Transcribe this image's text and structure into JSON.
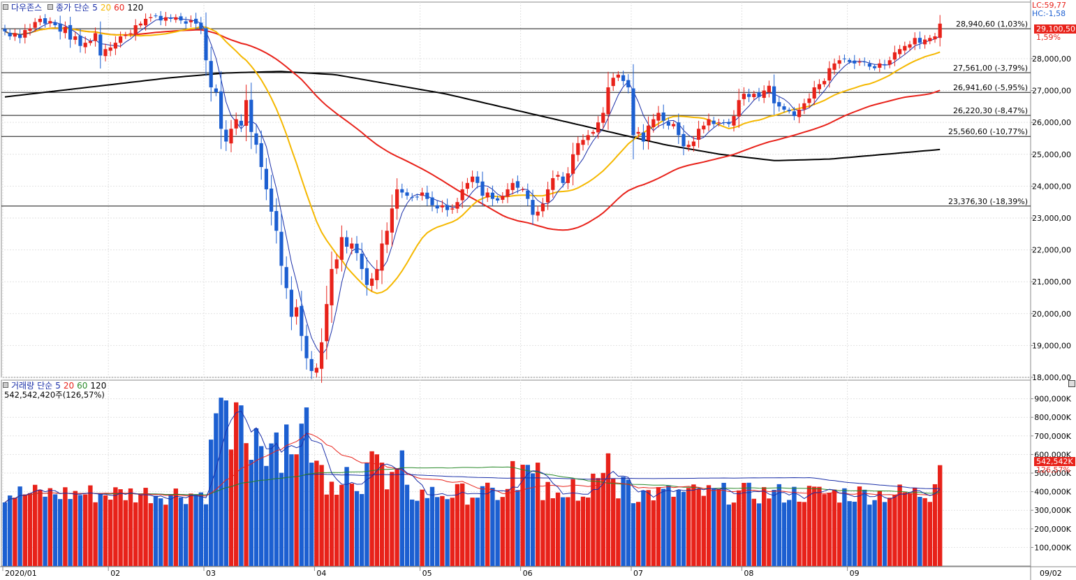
{
  "price_legend": {
    "name": "다우존스",
    "close": "종가",
    "method": "단순",
    "periods": [
      "5",
      "20",
      "60",
      "120"
    ]
  },
  "volume_legend": {
    "name": "거래량",
    "method": "단순",
    "periods": [
      "5",
      "20",
      "60",
      "120"
    ],
    "current_text": "542,542,420주(126,57%)"
  },
  "corner": {
    "lc": "LC:59,77",
    "hc": "HC:-1,58"
  },
  "last_price_badge": "29,100,50",
  "last_change_badge": "1,59%",
  "last_volume_badge": "542,542K",
  "last_volume_pct_badge": "126,57%",
  "colors": {
    "up": "#e8221a",
    "down": "#1c5fd1",
    "ma5": "#1a2fa8",
    "ma20": "#f5b800",
    "ma60": "#e8221a",
    "ma120": "#000000",
    "vma20": "#e8221a",
    "vma60": "#2a8a2a",
    "vma120": "#1a2fa8"
  },
  "chart_data": {
    "type": "candlestick",
    "price_axis": {
      "ylim": [
        18000,
        29600
      ],
      "ticks": [
        18000,
        19000,
        20000,
        21000,
        22000,
        23000,
        24000,
        25000,
        26000,
        27000,
        28000
      ],
      "tick_labels": [
        "18,000,00",
        "19,000,00",
        "20,000,00",
        "21,000,00",
        "22,000,00",
        "23,000,00",
        "24,000,00",
        "25,000,00",
        "26,000,00",
        "27,000,00",
        "28,000,00"
      ]
    },
    "volume_axis": {
      "ylim": [
        0,
        1000000
      ],
      "ticks": [
        100000,
        200000,
        300000,
        400000,
        500000,
        600000,
        700000,
        800000,
        900000
      ],
      "tick_labels": [
        "100,000K",
        "200,000K",
        "300,000K",
        "400,000K",
        "500,000K",
        "600,000K",
        "700,000K",
        "800,000K",
        "900,000K"
      ]
    },
    "x_labels": [
      {
        "index": 0,
        "label": "2020/01"
      },
      {
        "index": 21,
        "label": "02"
      },
      {
        "index": 40,
        "label": "03"
      },
      {
        "index": 62,
        "label": "04"
      },
      {
        "index": 83,
        "label": "05"
      },
      {
        "index": 103,
        "label": "06"
      },
      {
        "index": 125,
        "label": "07"
      },
      {
        "index": 147,
        "label": "08"
      },
      {
        "index": 168,
        "label": "09"
      },
      {
        "index": 190,
        "label": "09/02"
      }
    ],
    "reference_lines": [
      {
        "value": 28940.6,
        "label": "28,940,60 (1,03%)"
      },
      {
        "value": 27561.0,
        "label": "27,561,00 (-3,79%)"
      },
      {
        "value": 26941.6,
        "label": "26,941,60 (-5,95%)"
      },
      {
        "value": 26220.3,
        "label": "26,220,30 (-8,47%)"
      },
      {
        "value": 25560.6,
        "label": "25,560,60 (-10,77%)"
      },
      {
        "value": 23376.3,
        "label": "23,376,30 (-18,39%)"
      }
    ],
    "series_close": [
      28860,
      28700,
      28800,
      28650,
      28900,
      28950,
      29150,
      29250,
      29100,
      29180,
      29050,
      28850,
      29000,
      28600,
      28700,
      28400,
      28500,
      28550,
      28800,
      28100,
      28300,
      28350,
      28500,
      28700,
      28750,
      28800,
      29050,
      29100,
      29250,
      29300,
      29350,
      29200,
      29300,
      29250,
      29300,
      29200,
      29100,
      29200,
      29100,
      28950,
      27950,
      27100,
      26950,
      25800,
      25400,
      25800,
      26100,
      25900,
      26700,
      25700,
      25300,
      24600,
      23900,
      23200,
      22600,
      21500,
      20800,
      19900,
      20200,
      19300,
      18600,
      18200,
      18300,
      19100,
      20300,
      21400,
      21700,
      22400,
      22100,
      22200,
      21900,
      21400,
      20900,
      21100,
      21400,
      22200,
      22600,
      23300,
      23900,
      23800,
      23700,
      23650,
      23650,
      23800,
      23600,
      23400,
      23300,
      23400,
      23250,
      23300,
      23500,
      23900,
      24100,
      24300,
      24100,
      23700,
      23800,
      23600,
      23550,
      23700,
      23900,
      24100,
      23950,
      23900,
      23600,
      23100,
      23200,
      23450,
      23900,
      24250,
      24350,
      24100,
      24400,
      25000,
      25350,
      25450,
      25600,
      25700,
      26000,
      26300,
      27100,
      27400,
      27500,
      27300,
      27100,
      25600,
      25700,
      25400,
      25900,
      26100,
      26300,
      26050,
      25900,
      25950,
      25600,
      25250,
      25300,
      25400,
      25800,
      25900,
      26100,
      25950,
      26000,
      26000,
      25950,
      26200,
      26700,
      26900,
      26800,
      26900,
      26800,
      27000,
      27150,
      26600,
      26500,
      26400,
      26350,
      26200,
      26400,
      26600,
      26750,
      27100,
      27200,
      27300,
      27700,
      27850,
      27950,
      28000,
      27900,
      27850,
      27900,
      27900,
      27750,
      27700,
      27850,
      27800,
      27950,
      28200,
      28300,
      28400,
      28450,
      28650,
      28500,
      28600,
      28650,
      28700,
      29100
    ],
    "candles_shown": 182,
    "volume_pct": "126,57%"
  }
}
